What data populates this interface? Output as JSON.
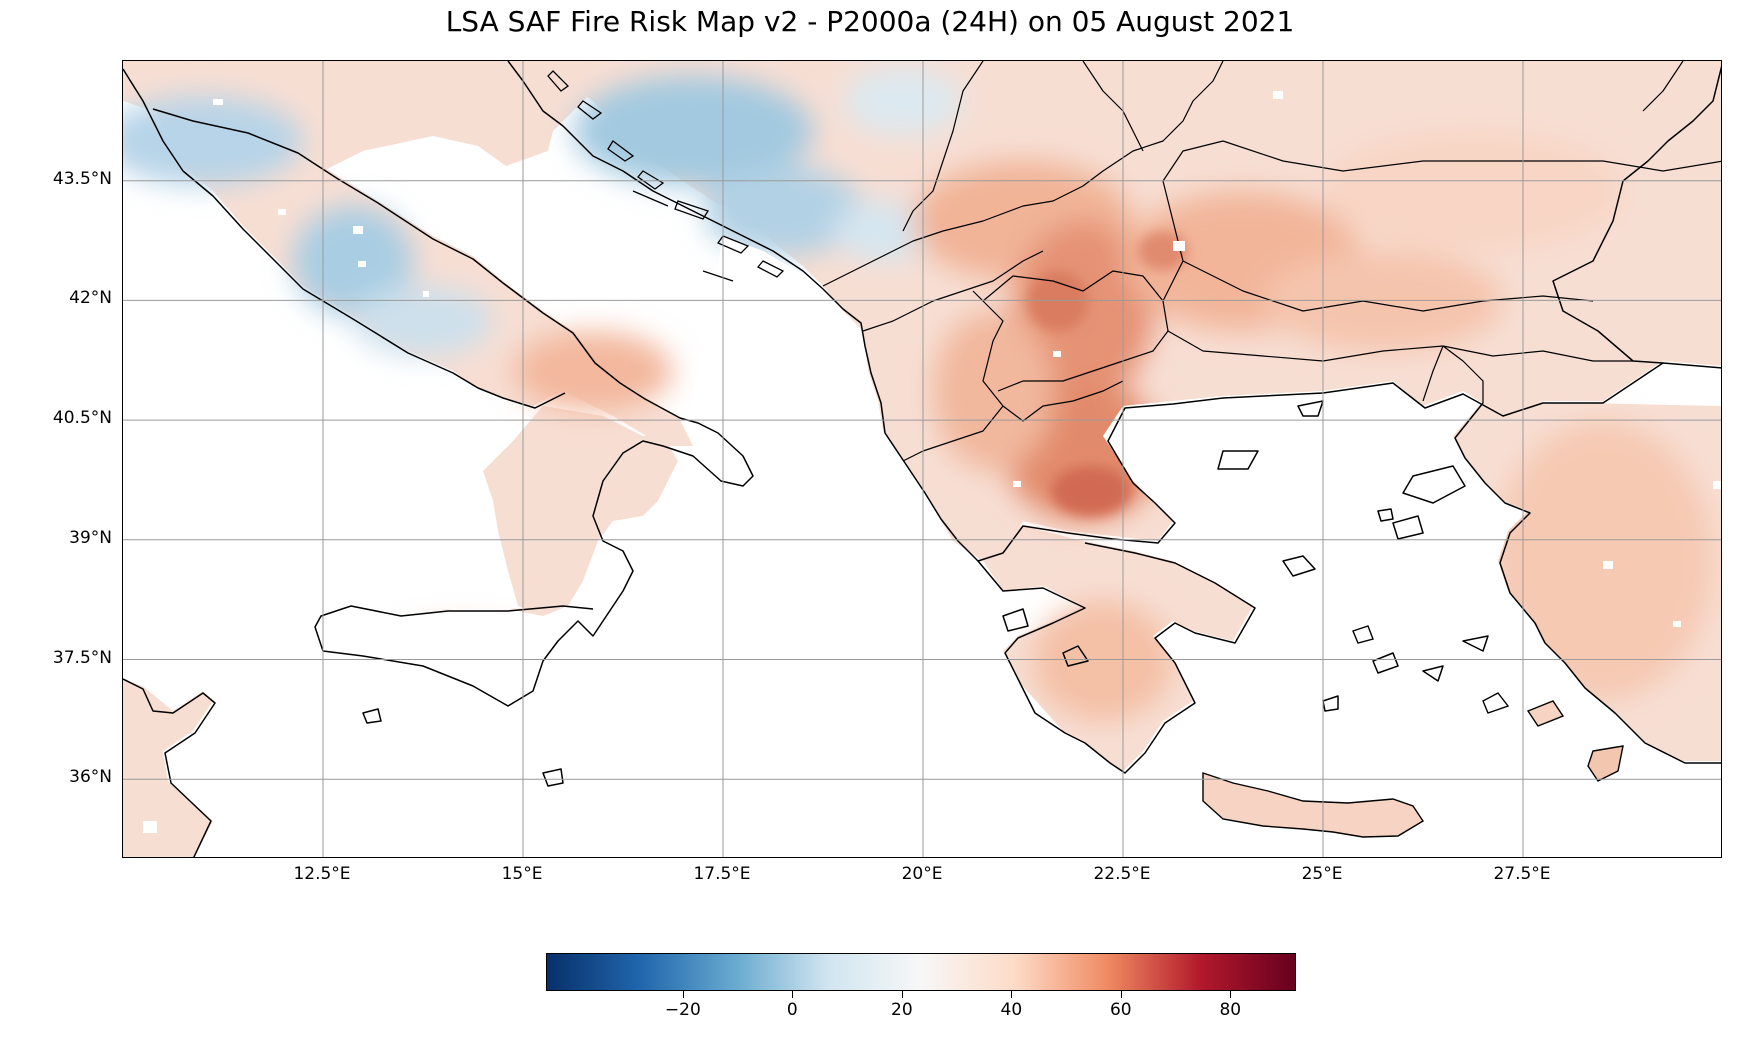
{
  "title": "LSA SAF Fire Risk Map v2 - P2000a (24H) on 05 August 2021",
  "map": {
    "extent": {
      "lon_min": 10.0,
      "lon_max": 30.0,
      "lat_min": 35.0,
      "lat_max": 45.0
    },
    "lat_ticks": [
      {
        "value": 43.5,
        "label": "43.5°N"
      },
      {
        "value": 42.0,
        "label": "42°N"
      },
      {
        "value": 40.5,
        "label": "40.5°N"
      },
      {
        "value": 39.0,
        "label": "39°N"
      },
      {
        "value": 37.5,
        "label": "37.5°N"
      },
      {
        "value": 36.0,
        "label": "36°N"
      }
    ],
    "lon_ticks": [
      {
        "value": 12.5,
        "label": "12.5°E"
      },
      {
        "value": 15.0,
        "label": "15°E"
      },
      {
        "value": 17.5,
        "label": "17.5°E"
      },
      {
        "value": 20.0,
        "label": "20°E"
      },
      {
        "value": 22.5,
        "label": "22.5°E"
      },
      {
        "value": 25.0,
        "label": "25°E"
      },
      {
        "value": 27.5,
        "label": "27.5°E"
      }
    ],
    "grid": true,
    "ocean_color": "#ffffff",
    "coast_color": "#000000"
  },
  "colorbar": {
    "min": -45,
    "max": 92,
    "colormap": "RdBu_r",
    "ticks": [
      {
        "value": -20,
        "label": "−20"
      },
      {
        "value": 0,
        "label": "0"
      },
      {
        "value": 20,
        "label": "20"
      },
      {
        "value": 40,
        "label": "40"
      },
      {
        "value": 60,
        "label": "60"
      },
      {
        "value": 80,
        "label": "80"
      }
    ],
    "stops": [
      "#08306b",
      "#2166ac",
      "#67a9cf",
      "#d1e5f0",
      "#f7f7f7",
      "#fddbc7",
      "#ef8a62",
      "#b2182b",
      "#67001f"
    ]
  }
}
